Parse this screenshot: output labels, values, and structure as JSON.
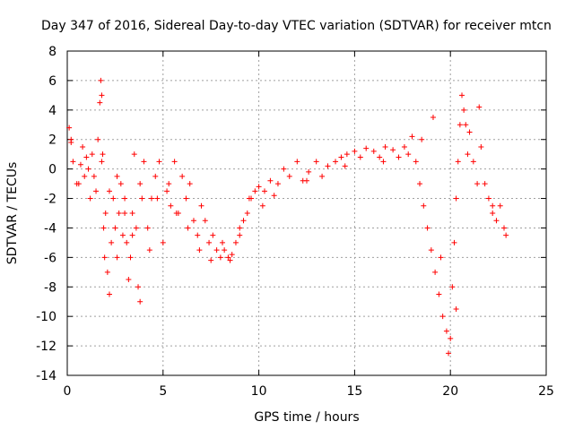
{
  "chart_data": {
    "type": "scatter",
    "title": "Day 347 of 2016, Sidereal Day-to-day VTEC variation (SDTVAR) for receiver mtcn",
    "xlabel": "GPS time / hours",
    "ylabel": "SDTVAR / TECUs",
    "xlim": [
      0,
      25
    ],
    "ylim": [
      -14,
      8
    ],
    "xticks": [
      0,
      5,
      10,
      15,
      20,
      25
    ],
    "yticks": [
      -14,
      -12,
      -10,
      -8,
      -6,
      -4,
      -2,
      0,
      2,
      4,
      6,
      8
    ],
    "grid": true,
    "marker": "plus",
    "color": "#ff0000",
    "series": [
      {
        "name": "SDTVAR",
        "x": [
          0.1,
          0.2,
          0.3,
          0.5,
          0.7,
          0.8,
          0.9,
          1.0,
          1.1,
          1.2,
          1.4,
          1.5,
          1.6,
          1.7,
          1.75,
          1.8,
          1.85,
          1.9,
          1.95,
          2.0,
          2.1,
          2.2,
          2.3,
          2.4,
          2.5,
          2.6,
          2.7,
          2.8,
          2.9,
          3.0,
          3.1,
          3.2,
          3.3,
          3.4,
          3.5,
          3.6,
          3.7,
          3.8,
          3.9,
          4.0,
          4.2,
          4.4,
          4.6,
          4.8,
          5.0,
          5.2,
          5.4,
          5.6,
          5.8,
          6.0,
          6.2,
          6.4,
          6.6,
          6.8,
          7.0,
          7.2,
          7.4,
          7.6,
          7.8,
          8.0,
          8.2,
          8.4,
          8.6,
          8.8,
          9.0,
          9.2,
          9.4,
          9.6,
          9.8,
          10.0,
          10.3,
          10.6,
          11.0,
          11.3,
          11.6,
          12.0,
          12.3,
          12.6,
          13.0,
          13.3,
          13.6,
          14.0,
          14.3,
          14.6,
          15.0,
          15.3,
          15.6,
          16.0,
          16.3,
          16.6,
          17.0,
          17.3,
          17.6,
          17.8,
          18.0,
          18.2,
          18.4,
          18.6,
          18.8,
          19.0,
          19.2,
          19.4,
          19.6,
          19.8,
          19.9,
          20.0,
          20.1,
          20.2,
          20.3,
          20.4,
          20.5,
          20.6,
          20.7,
          20.8,
          20.9,
          21.0,
          21.2,
          21.4,
          21.6,
          21.8,
          22.0,
          22.2,
          22.4,
          22.6,
          22.8,
          22.9,
          0.2,
          0.6,
          1.3,
          1.8,
          2.2,
          2.6,
          3.0,
          3.4,
          3.8,
          4.3,
          4.7,
          5.3,
          5.7,
          6.3,
          6.9,
          7.5,
          8.1,
          8.5,
          9.0,
          9.5,
          10.2,
          10.8,
          12.5,
          14.5,
          16.5,
          18.5,
          19.1,
          19.5,
          20.3,
          21.5,
          22.2
        ],
        "y": [
          2.8,
          1.8,
          0.5,
          -1.0,
          0.3,
          1.5,
          -0.5,
          0.8,
          0.0,
          -2.0,
          -0.5,
          -1.5,
          2.0,
          4.5,
          6.0,
          5.0,
          1.0,
          -4.0,
          -6.0,
          -3.0,
          -7.0,
          -8.5,
          -5.0,
          -2.0,
          -4.0,
          -6.0,
          -3.0,
          -1.0,
          -4.5,
          -2.0,
          -5.0,
          -7.5,
          -6.0,
          -3.0,
          1.0,
          -4.0,
          -8.0,
          -9.0,
          -2.0,
          0.5,
          -4.0,
          -2.0,
          -0.5,
          0.5,
          -5.0,
          -1.5,
          -2.5,
          0.5,
          -3.0,
          -0.5,
          -2.0,
          -1.0,
          -3.5,
          -4.5,
          -2.5,
          -3.5,
          -5.0,
          -4.5,
          -5.5,
          -6.0,
          -5.5,
          -6.0,
          -5.8,
          -5.0,
          -4.5,
          -3.5,
          -3.0,
          -2.0,
          -1.5,
          -1.2,
          -1.5,
          -0.8,
          -1.0,
          0.0,
          -0.5,
          0.5,
          -0.8,
          -0.2,
          0.5,
          -0.5,
          0.2,
          0.5,
          0.8,
          1.0,
          1.2,
          0.8,
          1.4,
          1.2,
          0.8,
          1.5,
          1.3,
          0.8,
          1.5,
          1.0,
          2.2,
          0.5,
          -1.0,
          -2.5,
          -4.0,
          -5.5,
          -7.0,
          -8.5,
          -10.0,
          -11.0,
          -12.5,
          -11.5,
          -8.0,
          -5.0,
          -2.0,
          0.5,
          3.0,
          5.0,
          4.0,
          3.0,
          1.0,
          2.5,
          0.5,
          -1.0,
          1.5,
          -1.0,
          -2.0,
          -3.0,
          -3.5,
          -2.5,
          -4.0,
          -4.5,
          2.0,
          -1.0,
          1.0,
          0.5,
          -1.5,
          -0.5,
          -3.0,
          -4.5,
          -1.0,
          -5.5,
          -2.0,
          -1.0,
          -3.0,
          -4.0,
          -5.5,
          -6.2,
          -5.0,
          -6.2,
          -4.0,
          -2.0,
          -2.5,
          -1.8,
          -0.8,
          0.2,
          0.5,
          2.0,
          3.5,
          -6.0,
          -9.5,
          4.2,
          -2.5
        ]
      }
    ]
  }
}
